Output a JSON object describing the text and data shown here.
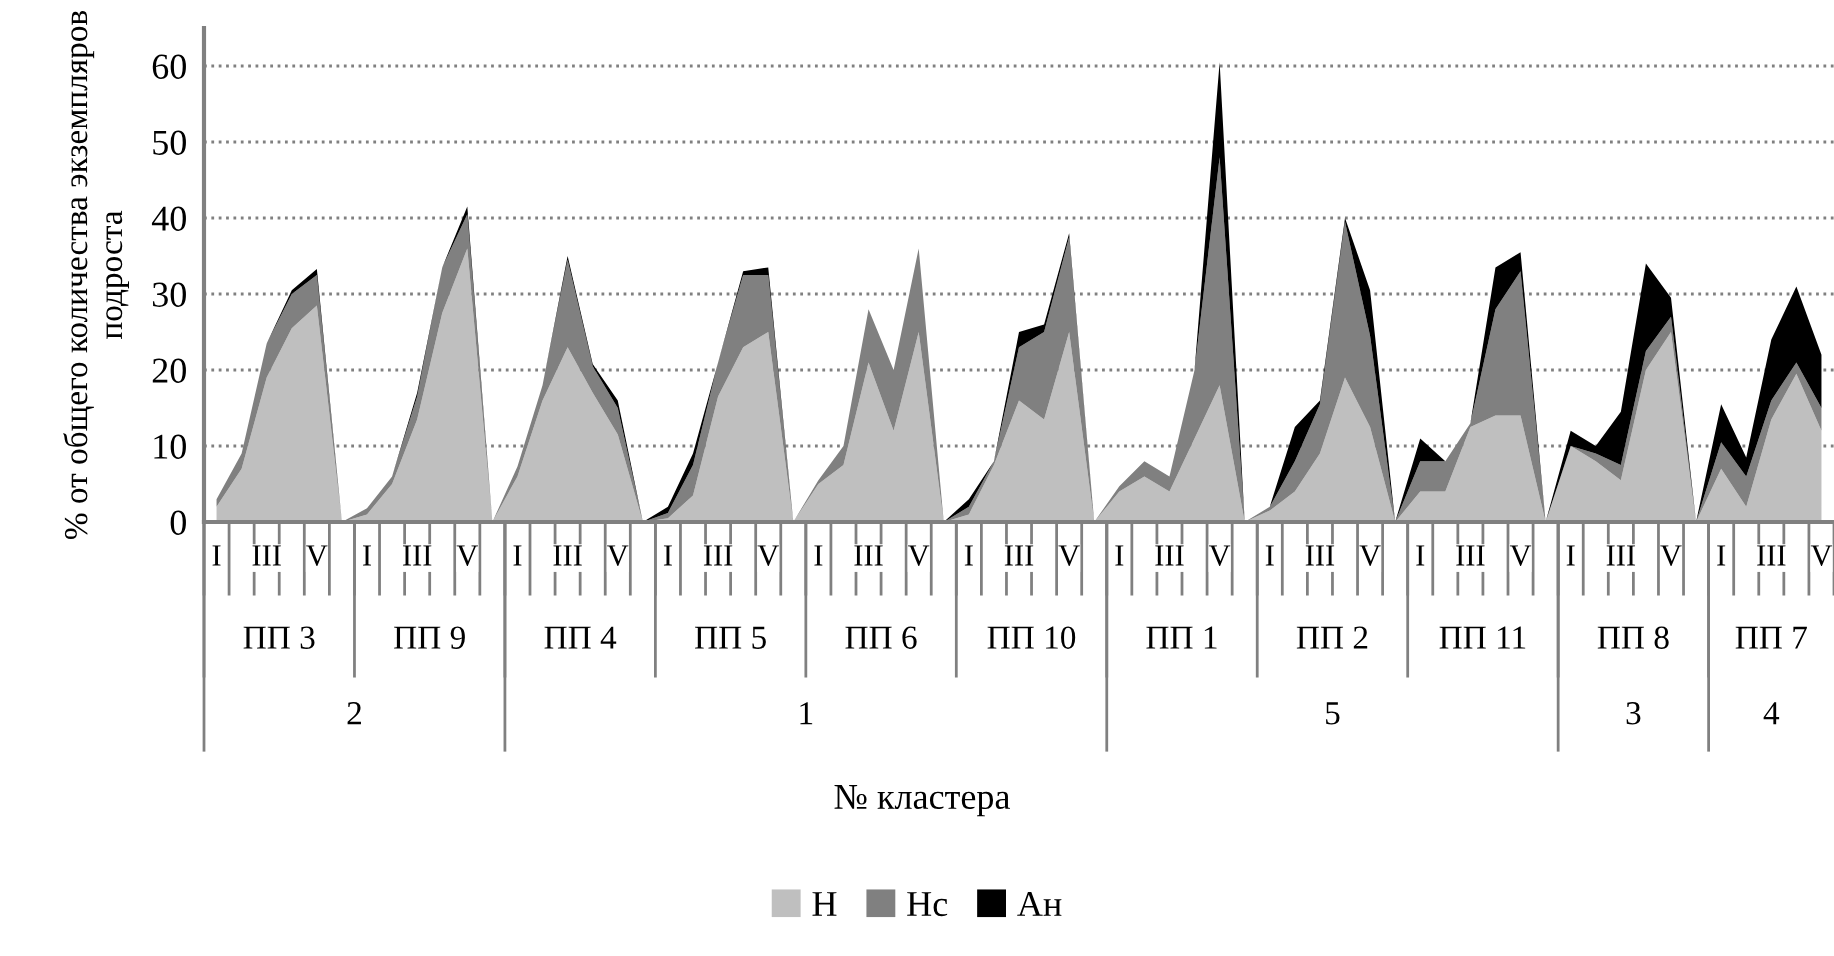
{
  "chart_data": {
    "type": "area",
    "stacked": true,
    "ylabel": "% от общего количества экземпляров\nподроста",
    "categories": [
      "I",
      null,
      "III",
      null,
      "V",
      null,
      "I",
      null,
      "III",
      null,
      "V",
      null,
      "I",
      null,
      "III",
      null,
      "V",
      null,
      "I",
      null,
      "III",
      null,
      "V",
      null,
      "I",
      null,
      "III",
      null,
      "V",
      null,
      "I",
      null,
      "III",
      null,
      "V",
      null,
      "I",
      null,
      "III",
      null,
      "V",
      null,
      "I",
      null,
      "III",
      null,
      "V",
      null,
      "I",
      null,
      "III",
      null,
      "V",
      null,
      "I",
      null,
      "III",
      null,
      "V",
      null,
      "I",
      null,
      "III",
      null,
      "V"
    ],
    "annotations": [
      "ПП 3",
      "ПП 9",
      "ПП 4",
      "ПП 5",
      "ПП 6",
      "ПП 10",
      "ПП 1",
      "ПП 2",
      "ПП 11",
      "ПП 8",
      "ПП 7",
      "2",
      "1",
      "5",
      "3",
      "4",
      "№ кластера"
    ],
    "series": [
      {
        "name": "Н",
        "color": "#bfbfbf",
        "values": [
          2,
          7,
          19,
          25.5,
          28.5,
          0,
          1,
          5,
          13.5,
          27.5,
          36,
          0,
          6,
          16,
          23,
          17,
          11.5,
          0,
          0.5,
          3.5,
          16.5,
          23,
          25,
          0,
          5,
          7.5,
          21,
          12,
          25,
          0,
          1,
          7.5,
          16,
          13.5,
          25,
          0,
          4,
          6,
          4,
          11,
          18,
          0,
          1.5,
          4,
          9,
          19,
          12.5,
          0,
          4,
          4,
          12.5,
          14,
          14,
          0,
          10,
          8,
          5.5,
          20,
          25,
          0,
          7,
          2,
          13.5,
          19.5,
          12
        ]
      },
      {
        "name": "Нс",
        "color": "#808080",
        "values": [
          1,
          2,
          4.5,
          4.5,
          4,
          0,
          0.8,
          1,
          3,
          6,
          4.5,
          0,
          1.3,
          2,
          11.5,
          3.5,
          3.5,
          0,
          0.7,
          4,
          4.5,
          9.5,
          7.5,
          0,
          0.5,
          2.5,
          7,
          8,
          11,
          0,
          1,
          0.5,
          7,
          11.5,
          12.5,
          0,
          0.7,
          2,
          2,
          9,
          30,
          0,
          0.5,
          4,
          6.5,
          20.5,
          12,
          0,
          4,
          4,
          0.5,
          14,
          19,
          0,
          0,
          1,
          2,
          2.5,
          2,
          0,
          3.5,
          4,
          2.5,
          1.5,
          3
        ]
      },
      {
        "name": "Ан",
        "color": "#000000",
        "values": [
          0,
          0,
          0,
          0.5,
          0.8,
          0,
          0,
          0,
          0.5,
          0,
          1,
          0,
          0,
          0,
          0.5,
          0.3,
          1,
          0,
          0.8,
          1.5,
          0,
          0.5,
          1,
          0,
          0,
          0,
          0,
          0,
          0,
          0,
          1,
          0,
          2,
          1,
          0.5,
          0,
          0,
          0,
          0,
          0,
          12.5,
          0,
          0,
          4.5,
          0.5,
          0.5,
          6,
          0,
          3,
          0,
          0,
          5.5,
          2.5,
          0,
          2,
          1,
          7,
          11.5,
          2.5,
          0,
          5,
          2.5,
          8,
          10,
          7
        ]
      }
    ],
    "ylim": [
      0,
      65
    ],
    "yticks": [
      0,
      10,
      20,
      30,
      40,
      50,
      60
    ],
    "grid": "y",
    "legend": "bottom",
    "line_style": "dotted"
  }
}
